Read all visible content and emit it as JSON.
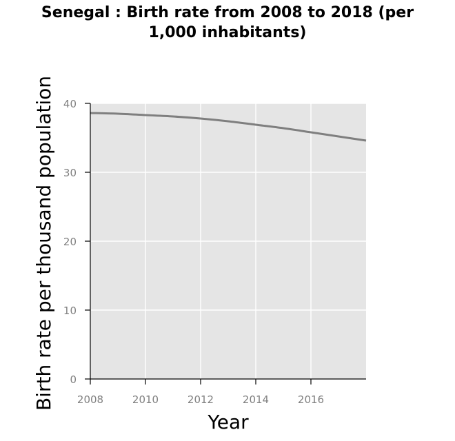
{
  "chart_data": {
    "type": "line",
    "title": "Senegal : Birth rate from 2008 to 2018 (per\n1,000 inhabitants)",
    "xlabel": "Year",
    "ylabel": "Birth rate per thousand population",
    "xlim": [
      2008,
      2018
    ],
    "ylim": [
      0,
      40
    ],
    "x_ticks": [
      "2008",
      "2010",
      "2012",
      "2014",
      "2016"
    ],
    "y_ticks": [
      "0",
      "10",
      "20",
      "30",
      "40"
    ],
    "grid": true,
    "series": [
      {
        "x": [
          2008,
          2009,
          2010,
          2011,
          2012,
          2013,
          2014,
          2015,
          2016,
          2017,
          2018
        ],
        "values": [
          38.6,
          38.5,
          38.3,
          38.1,
          37.8,
          37.4,
          36.9,
          36.4,
          35.8,
          35.2,
          34.6
        ]
      }
    ],
    "colors": {
      "panel": "#e5e5e5",
      "grid": "#ffffff",
      "line": "#7f7f7f",
      "tick": "#808080"
    }
  }
}
